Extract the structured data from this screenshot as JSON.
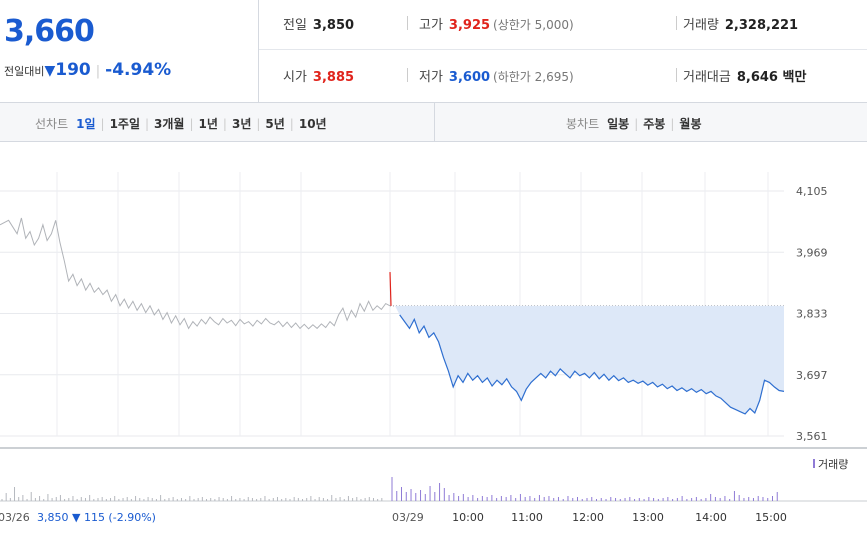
{
  "quote": {
    "price": "3,660",
    "change_label": "전일대비",
    "change_arrow": "▼",
    "change_amount": "190",
    "change_pct": "-4.94%"
  },
  "stats": {
    "prev_close": {
      "label": "전일",
      "value": "3,850"
    },
    "high": {
      "label": "고가",
      "value": "3,925",
      "limit_label": "(상한가 5,000)"
    },
    "volume": {
      "label": "거래량",
      "value": "2,328,221"
    },
    "open": {
      "label": "시가",
      "value": "3,885"
    },
    "low": {
      "label": "저가",
      "value": "3,600",
      "limit_label": "(하한가 2,695)"
    },
    "turnover": {
      "label": "거래대금",
      "value": "8,646 백만"
    }
  },
  "toolbar": {
    "line_chart_label": "선차트",
    "periods": [
      "1일",
      "1주일",
      "3개월",
      "1년",
      "3년",
      "5년",
      "10년"
    ],
    "active_period": "1일",
    "candle_chart_label": "봉차트",
    "candles": [
      "일봉",
      "주봉",
      "월봉"
    ]
  },
  "chart_data": {
    "type": "line",
    "y_ticks": [
      "4,105",
      "3,969",
      "3,833",
      "3,697",
      "3,561"
    ],
    "ylim": [
      3561,
      4105
    ],
    "reference_value": 3850,
    "volume_label": "거래량",
    "prev_day": {
      "date": "03/26",
      "close": "3,850",
      "arrow": "▼",
      "change": "115",
      "change_pct": "(-2.90%)",
      "series": [
        [
          0,
          4030
        ],
        [
          2,
          4040
        ],
        [
          4,
          4010
        ],
        [
          5,
          4045
        ],
        [
          6,
          4000
        ],
        [
          7,
          4015
        ],
        [
          8,
          3985
        ],
        [
          9,
          4000
        ],
        [
          10,
          4030
        ],
        [
          11,
          3995
        ],
        [
          12,
          4010
        ],
        [
          13,
          4040
        ],
        [
          14,
          3990
        ],
        [
          15,
          3950
        ],
        [
          16,
          3905
        ],
        [
          17,
          3920
        ],
        [
          18,
          3895
        ],
        [
          19,
          3910
        ],
        [
          20,
          3885
        ],
        [
          21,
          3900
        ],
        [
          22,
          3880
        ],
        [
          23,
          3890
        ],
        [
          24,
          3875
        ],
        [
          25,
          3885
        ],
        [
          26,
          3860
        ],
        [
          27,
          3875
        ],
        [
          28,
          3850
        ],
        [
          29,
          3865
        ],
        [
          30,
          3845
        ],
        [
          31,
          3860
        ],
        [
          32,
          3840
        ],
        [
          33,
          3855
        ],
        [
          34,
          3835
        ],
        [
          35,
          3850
        ],
        [
          36,
          3830
        ],
        [
          37,
          3842
        ],
        [
          38,
          3820
        ],
        [
          39,
          3835
        ],
        [
          40,
          3812
        ],
        [
          41,
          3828
        ],
        [
          42,
          3808
        ],
        [
          43,
          3822
        ],
        [
          44,
          3800
        ],
        [
          45,
          3815
        ],
        [
          46,
          3805
        ],
        [
          47,
          3820
        ],
        [
          48,
          3810
        ],
        [
          49,
          3825
        ],
        [
          50,
          3815
        ],
        [
          51,
          3808
        ],
        [
          52,
          3822
        ],
        [
          53,
          3812
        ],
        [
          54,
          3818
        ],
        [
          55,
          3806
        ],
        [
          56,
          3820
        ],
        [
          57,
          3810
        ],
        [
          58,
          3815
        ],
        [
          59,
          3805
        ],
        [
          60,
          3818
        ],
        [
          61,
          3810
        ],
        [
          62,
          3822
        ],
        [
          63,
          3812
        ],
        [
          64,
          3808
        ],
        [
          65,
          3816
        ],
        [
          66,
          3804
        ],
        [
          67,
          3814
        ],
        [
          68,
          3802
        ],
        [
          69,
          3812
        ],
        [
          70,
          3800
        ],
        [
          71,
          3809
        ],
        [
          72,
          3799
        ],
        [
          73,
          3808
        ],
        [
          74,
          3800
        ],
        [
          75,
          3810
        ],
        [
          76,
          3802
        ],
        [
          77,
          3815
        ],
        [
          78,
          3806
        ],
        [
          79,
          3830
        ],
        [
          80,
          3845
        ],
        [
          81,
          3818
        ],
        [
          82,
          3840
        ],
        [
          83,
          3825
        ],
        [
          84,
          3855
        ],
        [
          85,
          3838
        ],
        [
          86,
          3860
        ],
        [
          87,
          3840
        ],
        [
          88,
          3850
        ],
        [
          89,
          3842
        ],
        [
          90,
          3855
        ],
        [
          91,
          3850
        ]
      ]
    },
    "today": {
      "date": "03/29",
      "x_ticks": [
        "10:00",
        "11:00",
        "12:00",
        "13:00",
        "14:00",
        "15:00"
      ],
      "series": [
        [
          0,
          3925
        ],
        [
          1,
          3885
        ],
        [
          2,
          3830
        ],
        [
          3,
          3815
        ],
        [
          4,
          3800
        ],
        [
          5,
          3820
        ],
        [
          6,
          3790
        ],
        [
          7,
          3805
        ],
        [
          8,
          3780
        ],
        [
          9,
          3790
        ],
        [
          10,
          3770
        ],
        [
          11,
          3735
        ],
        [
          12,
          3705
        ],
        [
          13,
          3670
        ],
        [
          14,
          3695
        ],
        [
          15,
          3680
        ],
        [
          16,
          3700
        ],
        [
          17,
          3685
        ],
        [
          18,
          3695
        ],
        [
          19,
          3680
        ],
        [
          20,
          3690
        ],
        [
          21,
          3672
        ],
        [
          22,
          3685
        ],
        [
          23,
          3675
        ],
        [
          24,
          3688
        ],
        [
          25,
          3670
        ],
        [
          26,
          3660
        ],
        [
          27,
          3640
        ],
        [
          28,
          3665
        ],
        [
          29,
          3680
        ],
        [
          30,
          3690
        ],
        [
          31,
          3700
        ],
        [
          32,
          3690
        ],
        [
          33,
          3705
        ],
        [
          34,
          3695
        ],
        [
          35,
          3710
        ],
        [
          36,
          3700
        ],
        [
          37,
          3690
        ],
        [
          38,
          3705
        ],
        [
          39,
          3695
        ],
        [
          40,
          3700
        ],
        [
          41,
          3690
        ],
        [
          42,
          3702
        ],
        [
          43,
          3688
        ],
        [
          44,
          3698
        ],
        [
          45,
          3685
        ],
        [
          46,
          3695
        ],
        [
          47,
          3684
        ],
        [
          48,
          3690
        ],
        [
          49,
          3680
        ],
        [
          50,
          3685
        ],
        [
          51,
          3678
        ],
        [
          52,
          3683
        ],
        [
          53,
          3674
        ],
        [
          54,
          3680
        ],
        [
          55,
          3670
        ],
        [
          56,
          3676
        ],
        [
          57,
          3666
        ],
        [
          58,
          3672
        ],
        [
          59,
          3662
        ],
        [
          60,
          3668
        ],
        [
          61,
          3660
        ],
        [
          62,
          3666
        ],
        [
          63,
          3658
        ],
        [
          64,
          3664
        ],
        [
          65,
          3655
        ],
        [
          66,
          3660
        ],
        [
          67,
          3650
        ],
        [
          68,
          3645
        ],
        [
          69,
          3635
        ],
        [
          70,
          3625
        ],
        [
          71,
          3620
        ],
        [
          72,
          3615
        ],
        [
          73,
          3610
        ],
        [
          74,
          3622
        ],
        [
          75,
          3612
        ],
        [
          76,
          3640
        ],
        [
          77,
          3685
        ],
        [
          78,
          3680
        ],
        [
          79,
          3670
        ],
        [
          80,
          3662
        ],
        [
          81,
          3660
        ]
      ]
    },
    "volume": {
      "prev_day": [
        2,
        8,
        3,
        14,
        4,
        6,
        2,
        9,
        3,
        5,
        2,
        7,
        3,
        4,
        6,
        2,
        3,
        5,
        2,
        4,
        3,
        6,
        2,
        3,
        4,
        2,
        3,
        5,
        2,
        3,
        4,
        2,
        5,
        3,
        2,
        4,
        3,
        2,
        6,
        2,
        3,
        4,
        2,
        3,
        2,
        5,
        2,
        3,
        4,
        2,
        3,
        2,
        4,
        3,
        2,
        5,
        2,
        3,
        2,
        4,
        3,
        2,
        3,
        5,
        2,
        3,
        4,
        2,
        3,
        2,
        4,
        3,
        2,
        3,
        5,
        2,
        4,
        3,
        2,
        6,
        3,
        4,
        2,
        5,
        3,
        4,
        2,
        3,
        4,
        3,
        2,
        3
      ],
      "today": [
        24,
        10,
        14,
        9,
        12,
        8,
        11,
        7,
        15,
        9,
        18,
        13,
        6,
        8,
        5,
        7,
        4,
        6,
        3,
        5,
        4,
        6,
        3,
        5,
        4,
        6,
        3,
        7,
        4,
        5,
        3,
        6,
        4,
        5,
        3,
        4,
        2,
        5,
        3,
        4,
        2,
        3,
        4,
        2,
        3,
        2,
        4,
        3,
        2,
        3,
        4,
        2,
        3,
        2,
        4,
        3,
        2,
        3,
        4,
        2,
        3,
        5,
        2,
        3,
        4,
        2,
        3,
        7,
        4,
        3,
        5,
        2,
        10,
        6,
        3,
        4,
        3,
        5,
        4,
        3,
        5,
        9
      ]
    }
  }
}
